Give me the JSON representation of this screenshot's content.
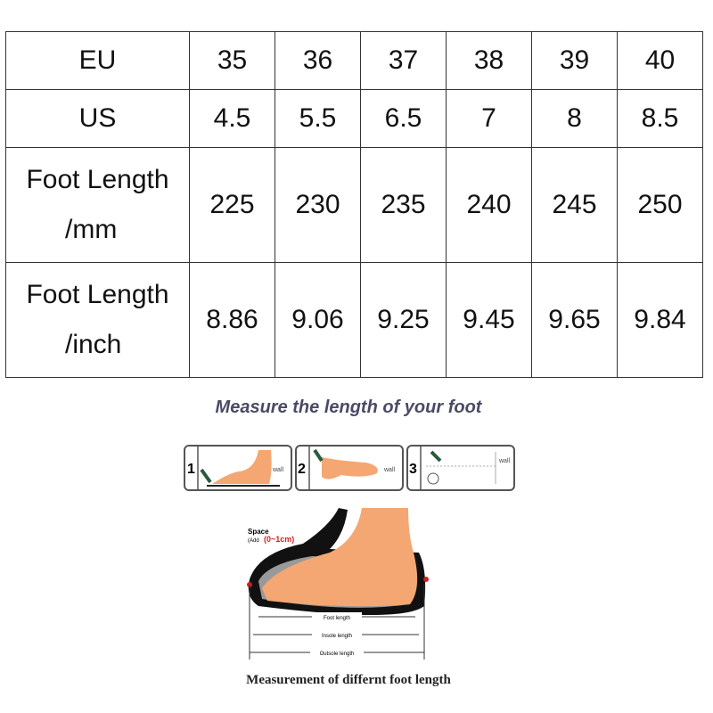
{
  "table": {
    "rows": [
      {
        "label": "EU",
        "values": [
          "35",
          "36",
          "37",
          "38",
          "39",
          "40"
        ]
      },
      {
        "label": "US",
        "values": [
          "4.5",
          "5.5",
          "6.5",
          "7",
          "8",
          "8.5"
        ]
      },
      {
        "label_line1": "Foot Length",
        "label_line2": "/mm",
        "values": [
          "225",
          "230",
          "235",
          "240",
          "245",
          "250"
        ]
      },
      {
        "label_line1": "Foot Length",
        "label_line2": "/inch",
        "values": [
          "8.86",
          "9.06",
          "9.25",
          "9.45",
          "9.65",
          "9.84"
        ]
      }
    ]
  },
  "guide": {
    "title": "Measure the length of your foot",
    "steps": [
      {
        "number": "1",
        "label": "wall"
      },
      {
        "number": "2",
        "label": "wall"
      },
      {
        "number": "3",
        "label": "wall"
      }
    ],
    "space_label": "Space",
    "space_add": "(Add",
    "space_range": "(0~1cm)",
    "foot_length": "Foot length",
    "insole_length": "Insole length",
    "outsole_length": "Outsole length",
    "caption": "Measurement of differnt foot length"
  },
  "colors": {
    "skin": "#f4a772",
    "sole": "#111111",
    "accent_red": "#d02020",
    "title": "#4a4a66"
  }
}
